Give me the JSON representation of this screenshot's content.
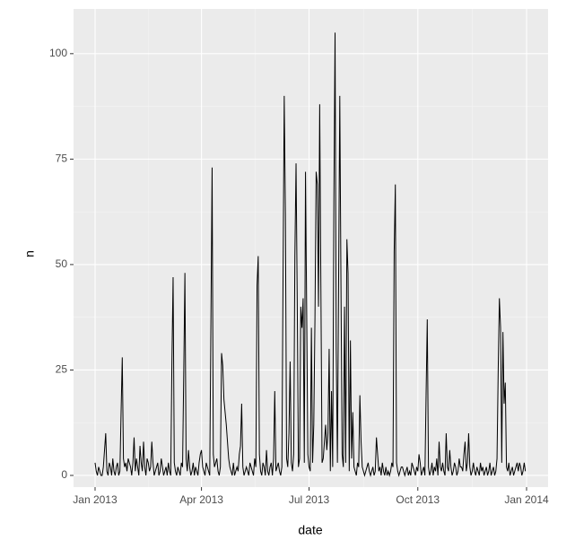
{
  "chart_data": {
    "type": "line",
    "x_label": "date",
    "y_label": "n",
    "x": [
      0,
      1,
      2,
      3,
      4,
      5,
      6,
      7,
      8,
      9,
      10,
      11,
      12,
      13,
      14,
      15,
      16,
      17,
      18,
      19,
      20,
      21,
      22,
      23,
      24,
      25,
      26,
      27,
      28,
      29,
      30,
      31,
      32,
      33,
      34,
      35,
      36,
      37,
      38,
      39,
      40,
      41,
      42,
      43,
      44,
      45,
      46,
      47,
      48,
      49,
      50,
      51,
      52,
      53,
      54,
      55,
      56,
      57,
      58,
      59,
      60,
      61,
      62,
      63,
      64,
      65,
      66,
      67,
      68,
      69,
      70,
      71,
      72,
      73,
      74,
      75,
      76,
      77,
      78,
      79,
      80,
      81,
      82,
      83,
      84,
      85,
      86,
      87,
      88,
      89,
      90,
      91,
      92,
      93,
      94,
      95,
      96,
      97,
      98,
      99,
      100,
      101,
      102,
      103,
      104,
      105,
      106,
      107,
      108,
      109,
      110,
      111,
      112,
      113,
      114,
      115,
      116,
      117,
      118,
      119,
      120,
      121,
      122,
      123,
      124,
      125,
      126,
      127,
      128,
      129,
      130,
      131,
      132,
      133,
      134,
      135,
      136,
      137,
      138,
      139,
      140,
      141,
      142,
      143,
      144,
      145,
      146,
      147,
      148,
      149,
      150,
      151,
      152,
      153,
      154,
      155,
      156,
      157,
      158,
      159,
      160,
      161,
      162,
      163,
      164,
      165,
      166,
      167,
      168,
      169,
      170,
      171,
      172,
      173,
      174,
      175,
      176,
      177,
      178,
      179,
      180,
      181,
      182,
      183,
      184,
      185,
      186,
      187,
      188,
      189,
      190,
      191,
      192,
      193,
      194,
      195,
      196,
      197,
      198,
      199,
      200,
      201,
      202,
      203,
      204,
      205,
      206,
      207,
      208,
      209,
      210,
      211,
      212,
      213,
      214,
      215,
      216,
      217,
      218,
      219,
      220,
      221,
      222,
      223,
      224,
      225,
      226,
      227,
      228,
      229,
      230,
      231,
      232,
      233,
      234,
      235,
      236,
      237,
      238,
      239,
      240,
      241,
      242,
      243,
      244,
      245,
      246,
      247,
      248,
      249,
      250,
      251,
      252,
      253,
      254,
      255,
      256,
      257,
      258,
      259,
      260,
      261,
      262,
      263,
      264,
      265,
      266,
      267,
      268,
      269,
      270,
      271,
      272,
      273,
      274,
      275,
      276,
      277,
      278,
      279,
      280,
      281,
      282,
      283,
      284,
      285,
      286,
      287,
      288,
      289,
      290,
      291,
      292,
      293,
      294,
      295,
      296,
      297,
      298,
      299,
      300,
      301,
      302,
      303,
      304,
      305,
      306,
      307,
      308,
      309,
      310,
      311,
      312,
      313,
      314,
      315,
      316,
      317,
      318,
      319,
      320,
      321,
      322,
      323,
      324,
      325,
      326,
      327,
      328,
      329,
      330,
      331,
      332,
      333,
      334,
      335,
      336,
      337,
      338,
      339,
      340,
      341,
      342,
      343,
      344,
      345,
      346,
      347,
      348,
      349,
      350,
      351,
      352,
      353,
      354,
      355,
      356,
      357,
      358,
      359,
      360,
      361,
      362,
      363,
      364
    ],
    "values": [
      3,
      1,
      0,
      2,
      1,
      0,
      0,
      2,
      6,
      10,
      1,
      0,
      3,
      2,
      0,
      4,
      1,
      0,
      2,
      3,
      0,
      1,
      15,
      28,
      4,
      2,
      3,
      1,
      4,
      3,
      2,
      0,
      3,
      9,
      1,
      4,
      2,
      0,
      7,
      3,
      1,
      8,
      2,
      0,
      4,
      3,
      1,
      2,
      8,
      3,
      0,
      1,
      2,
      3,
      0,
      1,
      4,
      2,
      0,
      1,
      2,
      0,
      3,
      1,
      0,
      27,
      47,
      3,
      1,
      0,
      2,
      1,
      0,
      3,
      2,
      24,
      48,
      4,
      1,
      6,
      2,
      0,
      1,
      3,
      0,
      2,
      1,
      0,
      3,
      5,
      6,
      2,
      1,
      0,
      3,
      2,
      1,
      0,
      37,
      73,
      5,
      2,
      3,
      4,
      1,
      0,
      2,
      29,
      26,
      18,
      15,
      12,
      8,
      4,
      2,
      1,
      0,
      3,
      0,
      1,
      2,
      1,
      5,
      7,
      17,
      2,
      0,
      1,
      2,
      1,
      0,
      3,
      2,
      1,
      0,
      4,
      2,
      45,
      52,
      5,
      1,
      0,
      3,
      2,
      0,
      6,
      1,
      0,
      2,
      3,
      0,
      4,
      20,
      1,
      2,
      3,
      1,
      0,
      2,
      47,
      90,
      62,
      4,
      2,
      10,
      27,
      3,
      1,
      5,
      52,
      74,
      42,
      2,
      4,
      40,
      35,
      42,
      3,
      72,
      38,
      5,
      2,
      1,
      35,
      3,
      12,
      37,
      72,
      69,
      40,
      88,
      45,
      3,
      4,
      8,
      12,
      6,
      10,
      30,
      1,
      20,
      2,
      65,
      105,
      30,
      3,
      46,
      90,
      45,
      5,
      2,
      40,
      3,
      56,
      48,
      1,
      32,
      4,
      15,
      2,
      1,
      0,
      3,
      2,
      19,
      8,
      2,
      1,
      0,
      1,
      2,
      3,
      1,
      0,
      1,
      2,
      0,
      1,
      9,
      5,
      1,
      2,
      0,
      3,
      1,
      0,
      2,
      0,
      1,
      0,
      1,
      3,
      2,
      53,
      69,
      3,
      1,
      0,
      1,
      2,
      2,
      1,
      0,
      1,
      2,
      0,
      1,
      0,
      3,
      2,
      1,
      0,
      2,
      1,
      5,
      3,
      0,
      1,
      2,
      0,
      19,
      37,
      2,
      0,
      1,
      3,
      0,
      2,
      1,
      4,
      0,
      8,
      2,
      1,
      3,
      1,
      0,
      10,
      2,
      1,
      6,
      2,
      0,
      1,
      3,
      2,
      0,
      1,
      4,
      2,
      2,
      1,
      5,
      8,
      1,
      3,
      10,
      2,
      0,
      1,
      3,
      1,
      0,
      2,
      1,
      0,
      3,
      1,
      2,
      0,
      1,
      2,
      0,
      1,
      3,
      0,
      1,
      2,
      0,
      1,
      4,
      25,
      42,
      35,
      3,
      34,
      17,
      22,
      2,
      1,
      3,
      0,
      1,
      2,
      0,
      1,
      2,
      3,
      1,
      3,
      2,
      0,
      1,
      3,
      1
    ],
    "color": "#000000",
    "xlim": [
      -18.2,
      383.2
    ],
    "xticks": [
      {
        "value": 0,
        "label": "Jan 2013"
      },
      {
        "value": 90,
        "label": "Apr 2013"
      },
      {
        "value": 181,
        "label": "Jul 2013"
      },
      {
        "value": 273,
        "label": "Oct 2013"
      },
      {
        "value": 365,
        "label": "Jan 2014"
      }
    ],
    "ylim": [
      -2.77,
      110.6
    ],
    "yticks": [
      0,
      25,
      50,
      75,
      100
    ],
    "grid": true
  }
}
